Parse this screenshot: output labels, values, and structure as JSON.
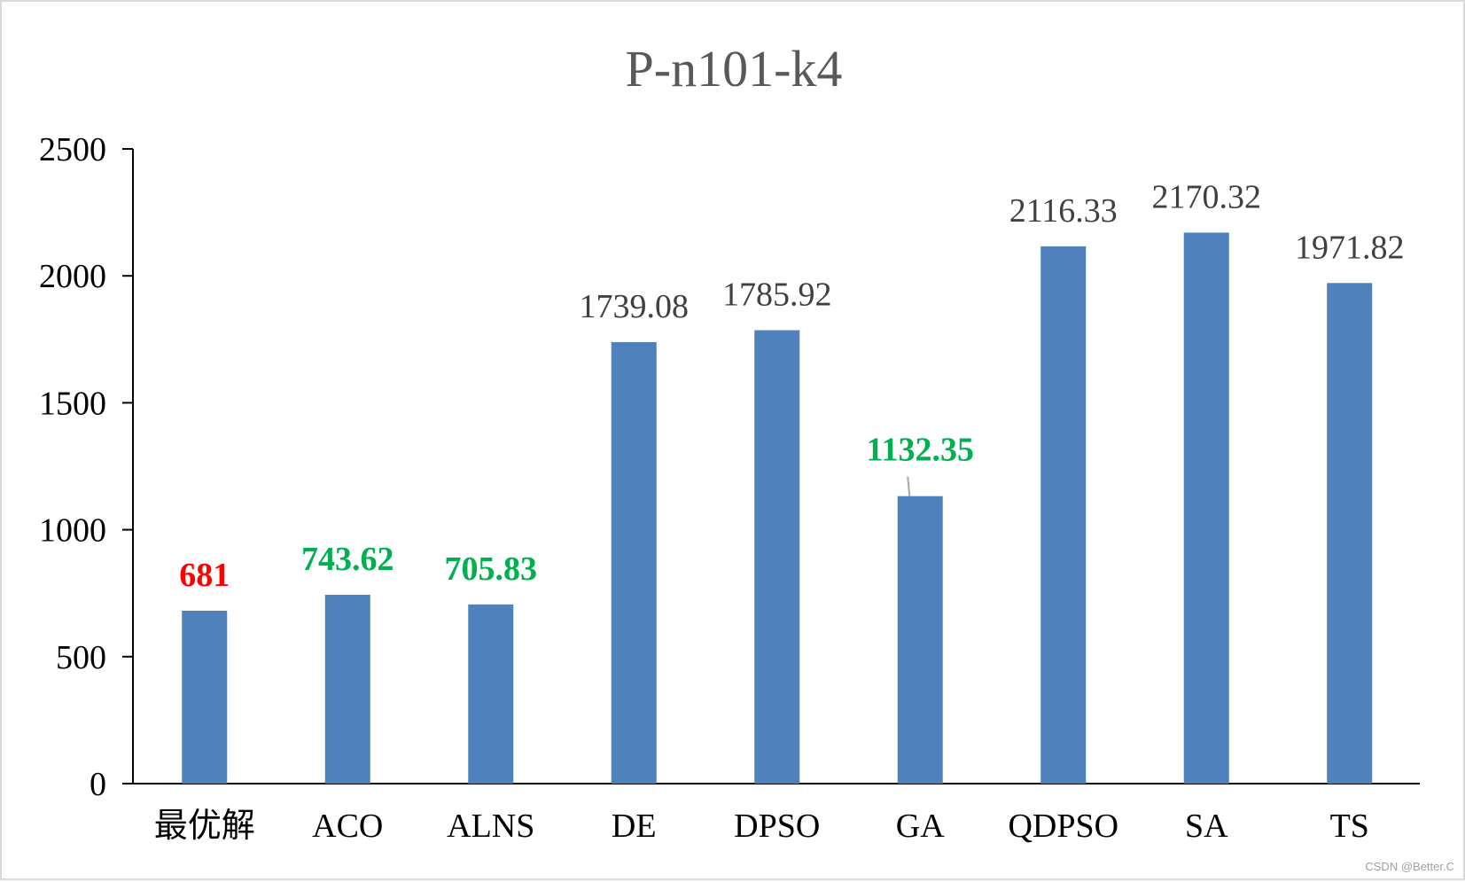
{
  "chart_data": {
    "type": "bar",
    "title": "P-n101-k4",
    "xlabel": "",
    "ylabel": "",
    "categories": [
      "最优解",
      "ACO",
      "ALNS",
      "DE",
      "DPSO",
      "GA",
      "QDPSO",
      "SA",
      "TS"
    ],
    "values": [
      681,
      743.62,
      705.83,
      1739.08,
      1785.92,
      1132.35,
      2116.33,
      2170.32,
      1971.82
    ],
    "data_labels": [
      "681",
      "743.62",
      "705.83",
      "1739.08",
      "1785.92",
      "1132.35",
      "2116.33",
      "2170.32",
      "1971.82"
    ],
    "label_colors": [
      "#ff0000",
      "#00b050",
      "#00b050",
      "#404040",
      "#404040",
      "#00b050",
      "#404040",
      "#404040",
      "#404040"
    ],
    "label_bold": [
      true,
      true,
      true,
      false,
      false,
      true,
      false,
      false,
      false
    ],
    "yticks": [
      0,
      500,
      1000,
      1500,
      2000,
      2500
    ],
    "ylim": [
      0,
      2500
    ],
    "grid": false,
    "legend": "none",
    "bar_color": "#4f81bd"
  },
  "watermark": "CSDN @Better.C"
}
